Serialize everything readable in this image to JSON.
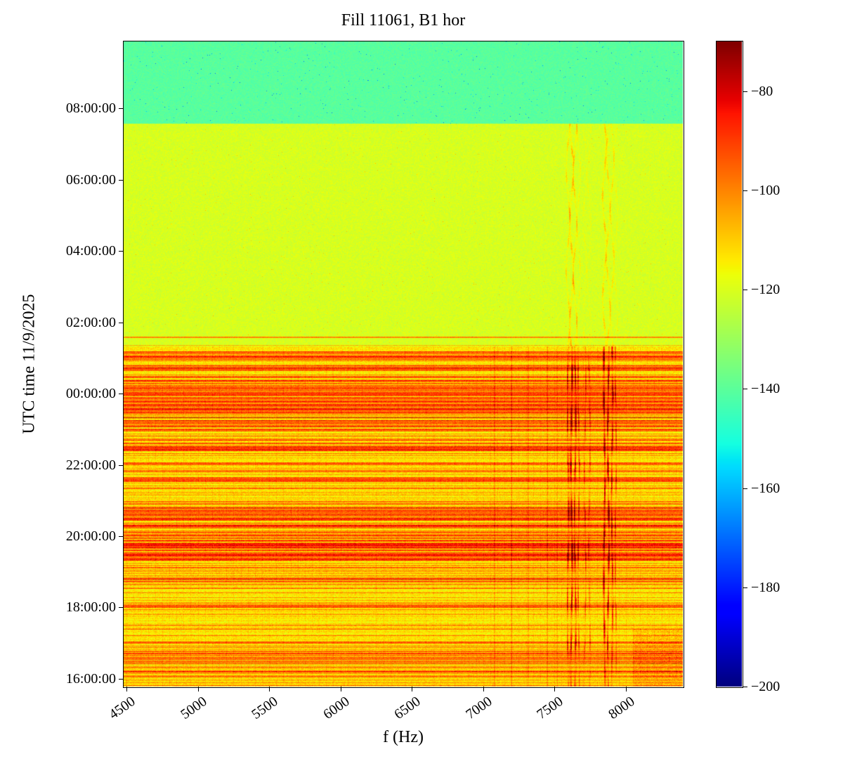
{
  "chart_data": {
    "type": "heatmap",
    "title": "Fill 11061, B1 hor",
    "xlabel": "f (Hz)",
    "ylabel": "UTC time 11/9/2025",
    "x_range_hz": [
      4480,
      8400
    ],
    "x_ticks": [
      4500,
      5000,
      5500,
      6000,
      6500,
      7000,
      7500,
      8000
    ],
    "y_axis": {
      "start_hour": 15.78,
      "end_hour": 33.88,
      "tick_hours": [
        16,
        18,
        20,
        22,
        24,
        26,
        28,
        30,
        32
      ],
      "tick_labels": [
        "16:00:00",
        "18:00:00",
        "20:00:00",
        "22:00:00",
        "00:00:00",
        "02:00:00",
        "04:00:00",
        "06:00:00",
        "08:00:00"
      ]
    },
    "colorbar": {
      "colormap": "jet",
      "vmin": -200,
      "vmax": -70,
      "ticks": [
        -80,
        -100,
        -120,
        -140,
        -160,
        -180,
        -200
      ]
    },
    "bands": [
      {
        "name": "lower",
        "t0": 15.78,
        "t1": 25.33,
        "base_db": -113,
        "description": "dense horizontal red striping 16:00-01:20"
      },
      {
        "name": "mid",
        "t0": 25.33,
        "t1": 31.58,
        "base_db": -120.5,
        "description": "uniform yellow 01:20-07:35"
      },
      {
        "name": "top",
        "t0": 31.58,
        "t1": 33.88,
        "base_db": -140.5,
        "description": "green/no-beam region after 07:35"
      }
    ],
    "noise_db": {
      "lower": 5,
      "mid": 3.5,
      "top": 3
    },
    "h_stripe_groups": [
      {
        "t0": 15.78,
        "t1": 16.4,
        "density": 0.5,
        "boost_db": 16
      },
      {
        "t0": 16.4,
        "t1": 16.75,
        "density": 0.7,
        "boost_db": 24
      },
      {
        "t0": 16.75,
        "t1": 17.2,
        "density": 0.45,
        "boost_db": 18
      },
      {
        "t0": 17.2,
        "t1": 18.6,
        "density": 0.3,
        "boost_db": 16
      },
      {
        "t0": 18.6,
        "t1": 19.3,
        "density": 0.4,
        "boost_db": 18
      },
      {
        "t0": 19.3,
        "t1": 21.0,
        "density": 0.72,
        "boost_db": 26
      },
      {
        "t0": 21.0,
        "t1": 21.3,
        "density": 0.25,
        "boost_db": 12
      },
      {
        "t0": 21.3,
        "t1": 22.0,
        "density": 0.55,
        "boost_db": 22
      },
      {
        "t0": 22.0,
        "t1": 22.4,
        "density": 0.35,
        "boost_db": 14
      },
      {
        "t0": 22.4,
        "t1": 24.0,
        "density": 0.68,
        "boost_db": 26
      },
      {
        "t0": 24.0,
        "t1": 25.2,
        "density": 0.5,
        "boost_db": 22
      }
    ],
    "h_lines": [
      {
        "t": 25.35,
        "boost_db": 14
      },
      {
        "t": 25.58,
        "boost_db": 20
      }
    ],
    "v_streaks": [
      {
        "f": 7595,
        "w": 6,
        "lo": 22,
        "mid": 10
      },
      {
        "f": 7620,
        "w": 7,
        "lo": 30,
        "mid": 14
      },
      {
        "f": 7645,
        "w": 6,
        "lo": 26,
        "mid": 12
      },
      {
        "f": 7670,
        "w": 5,
        "lo": 18,
        "mid": 6
      },
      {
        "f": 7715,
        "w": 5,
        "lo": 14,
        "mid": 4
      },
      {
        "f": 7745,
        "w": 5,
        "lo": 12,
        "mid": 3
      },
      {
        "f": 7850,
        "w": 7,
        "lo": 28,
        "mid": 12
      },
      {
        "f": 7878,
        "w": 6,
        "lo": 30,
        "mid": 10
      },
      {
        "f": 7905,
        "w": 6,
        "lo": 24,
        "mid": 8
      },
      {
        "f": 7930,
        "w": 5,
        "lo": 16,
        "mid": 5
      }
    ],
    "v_streaks_lower": [
      {
        "f": 7080,
        "w": 5,
        "lo": 8
      },
      {
        "f": 7200,
        "w": 5,
        "lo": 8
      },
      {
        "f": 7315,
        "w": 5,
        "lo": 7
      },
      {
        "f": 7450,
        "w": 5,
        "lo": 7
      },
      {
        "f": 7520,
        "w": 4,
        "lo": 6
      }
    ],
    "v_grid": {
      "spacing_hz": 50,
      "boost_db": 3,
      "band": "lower"
    },
    "corner_patch": {
      "f_min": 8050,
      "t_max": 17.4,
      "boost_db": 9
    }
  }
}
